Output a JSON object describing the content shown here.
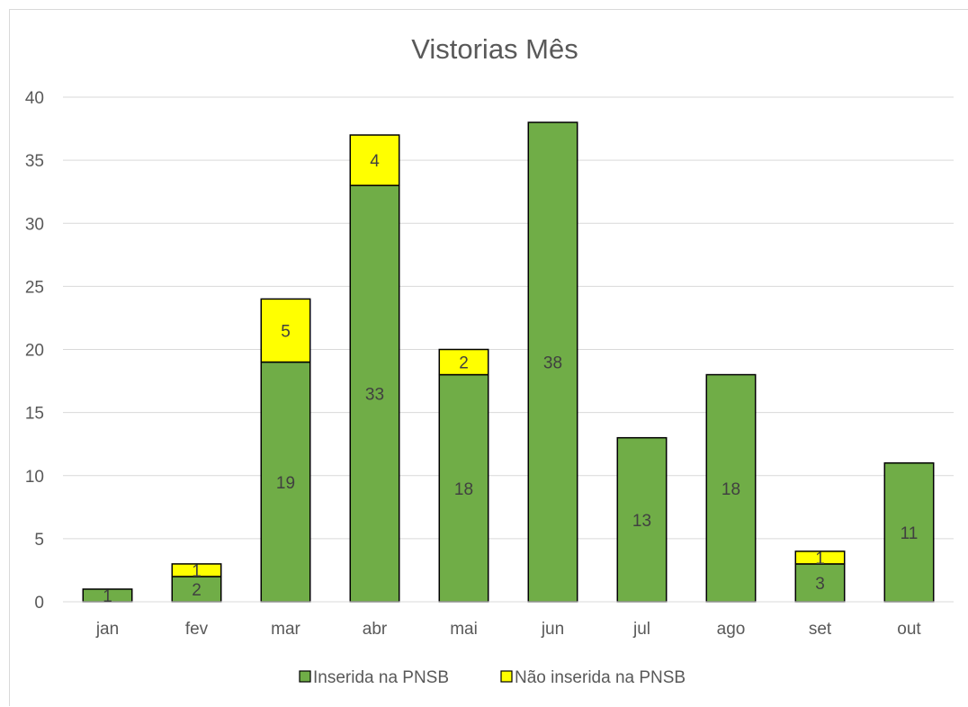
{
  "chart_data": {
    "type": "bar",
    "stacked": true,
    "title": "Vistorias Mês",
    "xlabel": "",
    "ylabel": "",
    "categories": [
      "jan",
      "fev",
      "mar",
      "abr",
      "mai",
      "jun",
      "jul",
      "ago",
      "set",
      "out"
    ],
    "series": [
      {
        "name": "Inserida na PNSB",
        "color": "#70ad47",
        "values": [
          1,
          2,
          19,
          33,
          18,
          38,
          13,
          18,
          3,
          11
        ],
        "labels": [
          "1",
          "2",
          "19",
          "33",
          "18",
          "38",
          "13",
          "18",
          "3",
          "11"
        ]
      },
      {
        "name": "Não inserida na PNSB",
        "color": "#ffff00",
        "values": [
          0,
          1,
          5,
          4,
          2,
          0,
          0,
          0,
          1,
          0
        ],
        "labels": [
          "",
          "1",
          "5",
          "4",
          "2",
          "",
          "",
          "",
          "1",
          ""
        ]
      }
    ],
    "ylim": [
      0,
      40
    ],
    "yticks": [
      "0",
      "5",
      "10",
      "15",
      "20",
      "25",
      "30",
      "35",
      "40"
    ],
    "grid": true,
    "legend_position": "bottom"
  }
}
